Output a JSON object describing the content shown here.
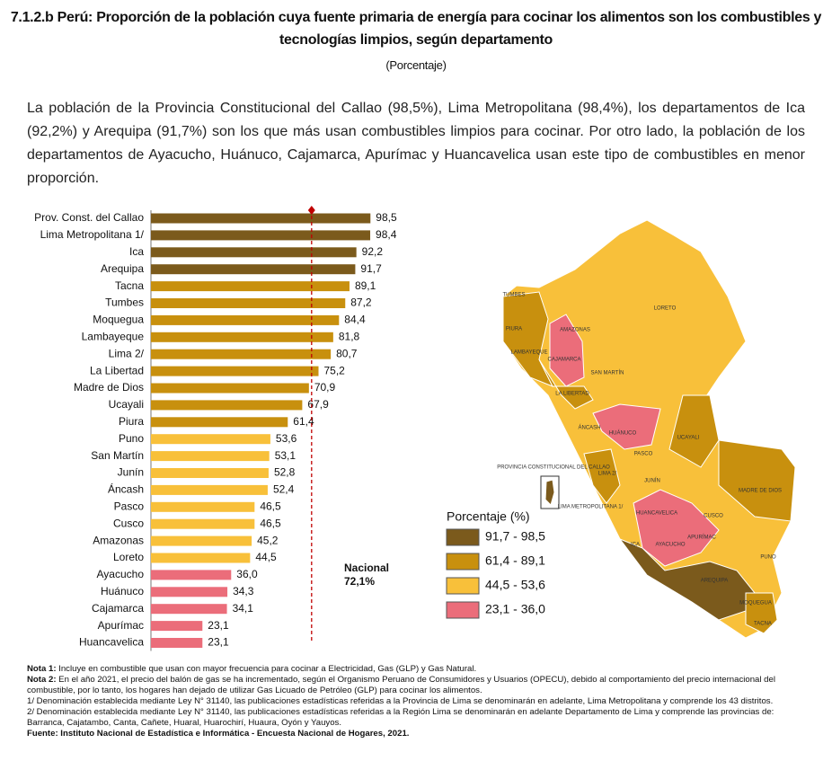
{
  "header": {
    "title_line1": "7.1.2.b Perú: Proporción de la población cuya fuente primaria de energía para cocinar los alimentos son los combustibles y",
    "title_line2": "tecnologías limpios, según departamento",
    "subtitle": "(Porcentaje)"
  },
  "paragraph": "La población de la Provincia Constitucional del Callao (98,5%), Lima Metropolitana (98,4%), los departamentos de Ica (92,2%) y Arequipa (91,7%) son los que más usan combustibles limpios para cocinar. Por otro lado, la población de los departamentos de Ayacucho, Huánuco, Cajamarca, Apurímac y Huancavelica usan este tipo de combustibles en menor proporción.",
  "chart_data": {
    "type": "hbar",
    "categories": [
      "Prov. Const. del Callao",
      "Lima Metropolitana 1/",
      "Ica",
      "Arequipa",
      "Tacna",
      "Tumbes",
      "Moquegua",
      "Lambayeque",
      "Lima 2/",
      "La Libertad",
      "Madre de Dios",
      "Ucayali",
      "Piura",
      "Puno",
      "San Martín",
      "Junín",
      "Áncash",
      "Pasco",
      "Cusco",
      "Amazonas",
      "Loreto",
      "Ayacucho",
      "Huánuco",
      "Cajamarca",
      "Apurímac",
      "Huancavelica"
    ],
    "values": [
      98.5,
      98.4,
      92.2,
      91.7,
      89.1,
      87.2,
      84.4,
      81.8,
      80.7,
      75.2,
      70.9,
      67.9,
      61.4,
      53.6,
      53.1,
      52.8,
      52.4,
      46.5,
      46.5,
      45.2,
      44.5,
      36.0,
      34.3,
      34.1,
      23.1,
      23.1
    ],
    "value_labels": [
      "98,5",
      "98,4",
      "92,2",
      "91,7",
      "89,1",
      "87,2",
      "84,4",
      "81,8",
      "80,7",
      "75,2",
      "70,9",
      "67,9",
      "61,4",
      "53,6",
      "53,1",
      "52,8",
      "52,4",
      "46,5",
      "46,5",
      "45,2",
      "44,5",
      "36,0",
      "34,3",
      "34,1",
      "23,1",
      "23,1"
    ],
    "colors": [
      "#7b5a1c",
      "#7b5a1c",
      "#7b5a1c",
      "#7b5a1c",
      "#c8900e",
      "#c8900e",
      "#c8900e",
      "#c8900e",
      "#c8900e",
      "#c8900e",
      "#c8900e",
      "#c8900e",
      "#c8900e",
      "#f8c03a",
      "#f8c03a",
      "#f8c03a",
      "#f8c03a",
      "#f8c03a",
      "#f8c03a",
      "#f8c03a",
      "#f8c03a",
      "#eb6d7a",
      "#eb6d7a",
      "#eb6d7a",
      "#eb6d7a",
      "#eb6d7a"
    ],
    "xlim": [
      0,
      100
    ],
    "reference_line": {
      "value": 72.1,
      "label": "Nacional",
      "value_label": "72,1%",
      "color": "#c00000"
    },
    "legend": {
      "title": "Porcentaje (%)",
      "items": [
        {
          "label": "91,7 - 98,5",
          "color": "#7b5a1c"
        },
        {
          "label": "61,4 - 89,1",
          "color": "#c8900e"
        },
        {
          "label": "44,5 - 53,6",
          "color": "#f8c03a"
        },
        {
          "label": "23,1 - 36,0",
          "color": "#eb6d7a"
        }
      ]
    }
  },
  "map": {
    "labels": [
      "TUMBES",
      "PIURA",
      "LAMBAYEQUE",
      "AMAZONAS",
      "CAJAMARCA",
      "SAN MARTÍN",
      "LA LIBERTAD",
      "LORETO",
      "ÁNCASH",
      "HUÁNUCO",
      "UCAYALI",
      "LIMA 2/",
      "PASCO",
      "JUNÍN",
      "MADRE DE DIOS",
      "CUSCO",
      "HUANCAVELICA",
      "APURÍMAC",
      "AYACUCHO",
      "ICA",
      "AREQUIPA",
      "PUNO",
      "MOQUEGUA",
      "TACNA",
      "PROVINCIA CONSTITUCIONAL DEL CALLAO",
      "LIMA METROPOLITANA 1/"
    ]
  },
  "notes": [
    {
      "label": "Nota 1:",
      "text": " Incluye en combustible que usan con mayor frecuencia para cocinar a Electricidad, Gas (GLP) y Gas Natural."
    },
    {
      "label": "Nota 2:",
      "text": " En el año 2021, el precio del balón de gas se ha incrementado, según el Organismo Peruano de Consumidores y Usuarios (OPECU), debido al comportamiento del precio internacional del combustible, por lo tanto, los hogares han dejado de utilizar Gas Licuado de Petróleo (GLP) para cocinar los alimentos."
    },
    {
      "label": "",
      "text": "1/ Denominación establecida mediante Ley N° 31140, las publicaciones estadísticas referidas a la Provincia de Lima se denominarán en adelante, Lima Metropolitana y comprende los 43 distritos."
    },
    {
      "label": "",
      "text": "2/ Denominación establecida mediante Ley N° 31140, las publicaciones estadísticas referidas a la Región Lima se denominarán en adelante Departamento de Lima y comprende las provincias de: Barranca, Cajatambo, Canta, Cañete, Huaral, Huarochirí, Huaura, Oyón y Yauyos."
    },
    {
      "label": "Fuente: Instituto Nacional de Estadística e Informática - Encuesta Nacional de Hogares, 2021.",
      "text": ""
    }
  ]
}
